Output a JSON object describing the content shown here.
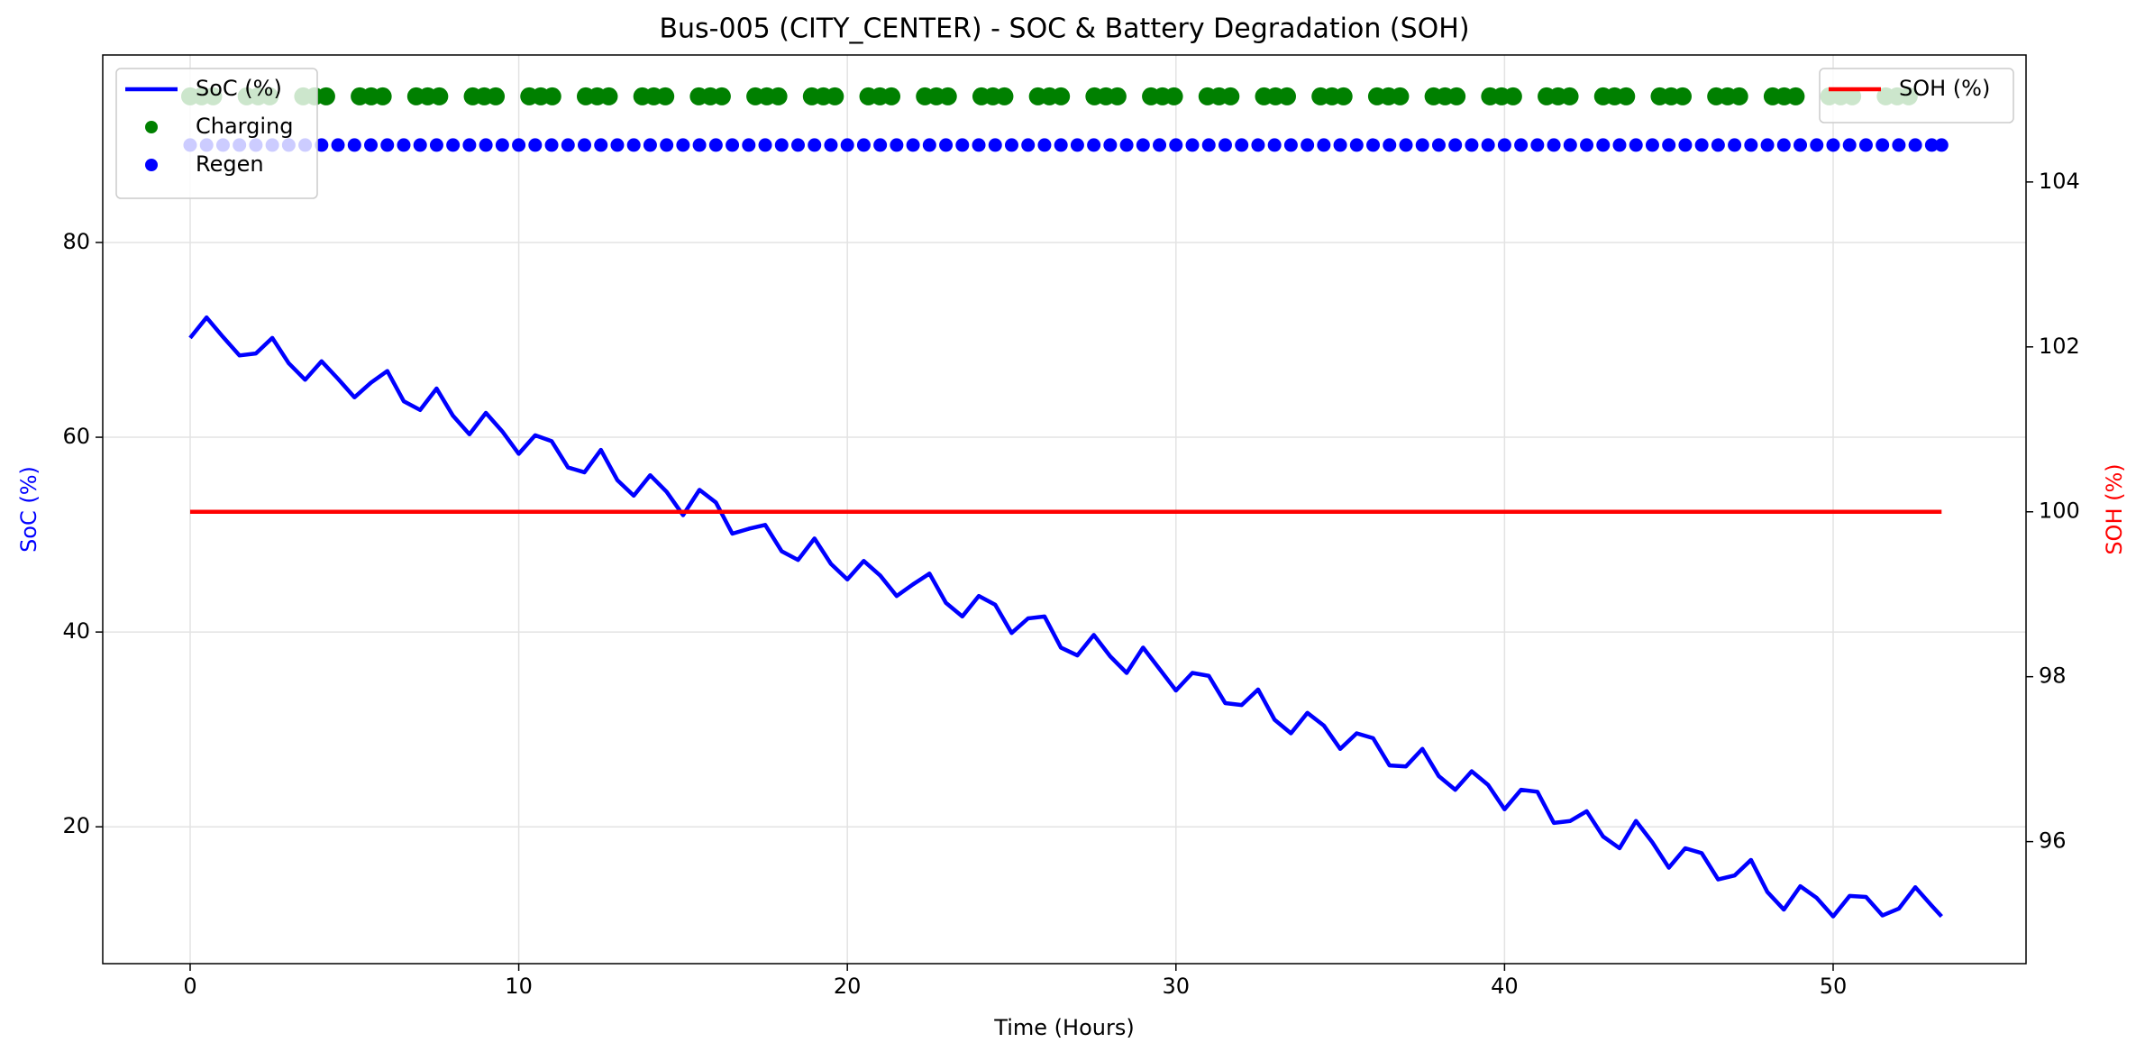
{
  "chart_data": {
    "type": "line",
    "title": "Bus-005 (CITY_CENTER) - SOC & Battery Degradation (SOH)",
    "xlabel": "Time (Hours)",
    "ylabel": "SoC (%)",
    "y2label": "SOH (%)",
    "xlim": [
      -2.66,
      55.87
    ],
    "xticks": [
      0,
      10,
      20,
      30,
      40,
      50
    ],
    "ylim": [
      5.95,
      99.25
    ],
    "yticks": [
      20,
      40,
      60,
      80
    ],
    "y2lim": [
      94.52,
      105.54
    ],
    "y2ticks": [
      96,
      98,
      100,
      102,
      104
    ],
    "grid": true,
    "legend": "upper left",
    "legend2": "upper right",
    "series": [
      {
        "name": "SoC (%)",
        "type": "line",
        "color": "#0000ff",
        "x": [
          0,
          0.5,
          1,
          1.5,
          2,
          2.5,
          3,
          3.5,
          4,
          4.5,
          5,
          5.5,
          6,
          6.5,
          7,
          7.5,
          8,
          8.5,
          9,
          9.5,
          10,
          10.5,
          11,
          11.5,
          12,
          12.5,
          13,
          13.5,
          14,
          14.5,
          15,
          15.5,
          16,
          16.5,
          17,
          17.5,
          18,
          18.5,
          19,
          19.5,
          20,
          20.5,
          21,
          21.5,
          22,
          22.5,
          23,
          23.5,
          24,
          24.5,
          25,
          25.5,
          26,
          26.5,
          27,
          27.5,
          28,
          28.5,
          29,
          29.5,
          30,
          30.5,
          31,
          31.5,
          32,
          32.5,
          33,
          33.5,
          34,
          34.5,
          35,
          35.5,
          36,
          36.5,
          37,
          37.5,
          38,
          38.5,
          39,
          39.5,
          40,
          40.5,
          41,
          41.5,
          42,
          42.5,
          43,
          43.5,
          44,
          44.5,
          45,
          45.5,
          46,
          46.5,
          47,
          47.5,
          48,
          48.5,
          49,
          49.5,
          50,
          50.5,
          51,
          51.5,
          52,
          52.5,
          53,
          53.3
        ],
        "values": [
          70.2,
          72.3,
          70.3,
          68.4,
          68.6,
          70.2,
          67.6,
          65.9,
          67.8,
          66.0,
          64.1,
          65.6,
          66.8,
          63.7,
          62.8,
          65.0,
          62.2,
          60.3,
          62.5,
          60.6,
          58.3,
          60.2,
          59.6,
          56.9,
          56.4,
          58.7,
          55.6,
          54.0,
          56.1,
          54.4,
          52.0,
          54.6,
          53.3,
          50.1,
          50.6,
          51.0,
          48.3,
          47.4,
          49.6,
          47.0,
          45.4,
          47.3,
          45.8,
          43.7,
          44.9,
          46.0,
          43.0,
          41.6,
          43.7,
          42.8,
          39.9,
          41.4,
          41.6,
          38.4,
          37.6,
          39.7,
          37.5,
          35.8,
          38.4,
          36.2,
          34.0,
          35.8,
          35.5,
          32.7,
          32.5,
          34.1,
          31.0,
          29.6,
          31.7,
          30.4,
          28.0,
          29.6,
          29.1,
          26.3,
          26.2,
          28.0,
          25.2,
          23.8,
          25.7,
          24.3,
          21.8,
          23.8,
          23.6,
          20.4,
          20.6,
          21.6,
          19.0,
          17.8,
          20.6,
          18.4,
          15.8,
          17.8,
          17.3,
          14.6,
          15.0,
          16.6,
          13.3,
          11.5,
          13.9,
          12.7,
          10.8,
          12.9,
          12.8,
          10.9,
          11.6,
          13.8,
          11.9,
          10.8
        ]
      },
      {
        "name": "Charging",
        "type": "scatter",
        "color": "#008000",
        "x": [
          0,
          0.35,
          0.7,
          1.72,
          2.07,
          2.42,
          3.44,
          3.79,
          4.14,
          5.16,
          5.51,
          5.86,
          6.88,
          7.23,
          7.58,
          8.6,
          8.95,
          9.3,
          10.32,
          10.67,
          11.02,
          12.04,
          12.39,
          12.74,
          13.76,
          14.11,
          14.46,
          15.48,
          15.83,
          16.18,
          17.2,
          17.55,
          17.9,
          18.92,
          19.27,
          19.62,
          20.64,
          20.99,
          21.34,
          22.36,
          22.71,
          23.06,
          24.08,
          24.43,
          24.78,
          25.8,
          26.15,
          26.5,
          27.52,
          27.87,
          28.22,
          29.24,
          29.59,
          29.94,
          30.96,
          31.31,
          31.66,
          32.68,
          33.03,
          33.38,
          34.4,
          34.75,
          35.1,
          36.12,
          36.47,
          36.82,
          37.84,
          38.19,
          38.54,
          39.56,
          39.91,
          40.26,
          41.28,
          41.63,
          41.98,
          43,
          43.35,
          43.7,
          44.72,
          45.07,
          45.42,
          46.44,
          46.79,
          47.14,
          48.16,
          48.51,
          48.86,
          49.88,
          50.23,
          50.58,
          51.6,
          51.95,
          52.3
        ],
        "values": [
          95,
          95,
          95,
          95,
          95,
          95,
          95,
          95,
          95,
          95,
          95,
          95,
          95,
          95,
          95,
          95,
          95,
          95,
          95,
          95,
          95,
          95,
          95,
          95,
          95,
          95,
          95,
          95,
          95,
          95,
          95,
          95,
          95,
          95,
          95,
          95,
          95,
          95,
          95,
          95,
          95,
          95,
          95,
          95,
          95,
          95,
          95,
          95,
          95,
          95,
          95,
          95,
          95,
          95,
          95,
          95,
          95,
          95,
          95,
          95,
          95,
          95,
          95,
          95,
          95,
          95,
          95,
          95,
          95,
          95,
          95,
          95,
          95,
          95,
          95,
          95,
          95,
          95,
          95,
          95,
          95,
          95,
          95,
          95,
          95,
          95,
          95,
          95,
          95,
          95,
          95,
          95,
          95
        ]
      },
      {
        "name": "Regen",
        "type": "scatter",
        "color": "#0000ff",
        "x": [
          0,
          0.5,
          1,
          1.5,
          2,
          2.5,
          3,
          3.5,
          4,
          4.5,
          5,
          5.5,
          6,
          6.5,
          7,
          7.5,
          8,
          8.5,
          9,
          9.5,
          10,
          10.5,
          11,
          11.5,
          12,
          12.5,
          13,
          13.5,
          14,
          14.5,
          15,
          15.5,
          16,
          16.5,
          17,
          17.5,
          18,
          18.5,
          19,
          19.5,
          20,
          20.5,
          21,
          21.5,
          22,
          22.5,
          23,
          23.5,
          24,
          24.5,
          25,
          25.5,
          26,
          26.5,
          27,
          27.5,
          28,
          28.5,
          29,
          29.5,
          30,
          30.5,
          31,
          31.5,
          32,
          32.5,
          33,
          33.5,
          34,
          34.5,
          35,
          35.5,
          36,
          36.5,
          37,
          37.5,
          38,
          38.5,
          39,
          39.5,
          40,
          40.5,
          41,
          41.5,
          42,
          42.5,
          43,
          43.5,
          44,
          44.5,
          45,
          45.5,
          46,
          46.5,
          47,
          47.5,
          48,
          48.5,
          49,
          49.5,
          50,
          50.5,
          51,
          51.5,
          52,
          52.5,
          53,
          53.3
        ],
        "values": [
          90,
          90,
          90,
          90,
          90,
          90,
          90,
          90,
          90,
          90,
          90,
          90,
          90,
          90,
          90,
          90,
          90,
          90,
          90,
          90,
          90,
          90,
          90,
          90,
          90,
          90,
          90,
          90,
          90,
          90,
          90,
          90,
          90,
          90,
          90,
          90,
          90,
          90,
          90,
          90,
          90,
          90,
          90,
          90,
          90,
          90,
          90,
          90,
          90,
          90,
          90,
          90,
          90,
          90,
          90,
          90,
          90,
          90,
          90,
          90,
          90,
          90,
          90,
          90,
          90,
          90,
          90,
          90,
          90,
          90,
          90,
          90,
          90,
          90,
          90,
          90,
          90,
          90,
          90,
          90,
          90,
          90,
          90,
          90,
          90,
          90,
          90,
          90,
          90,
          90,
          90,
          90,
          90,
          90,
          90,
          90,
          90,
          90,
          90,
          90,
          90,
          90,
          90,
          90,
          90,
          90,
          90,
          90
        ]
      },
      {
        "name": "SOH (%)",
        "type": "line",
        "axis": "y2",
        "color": "#ff0000",
        "x": [
          0,
          53.3
        ],
        "values": [
          100,
          100
        ]
      }
    ]
  }
}
